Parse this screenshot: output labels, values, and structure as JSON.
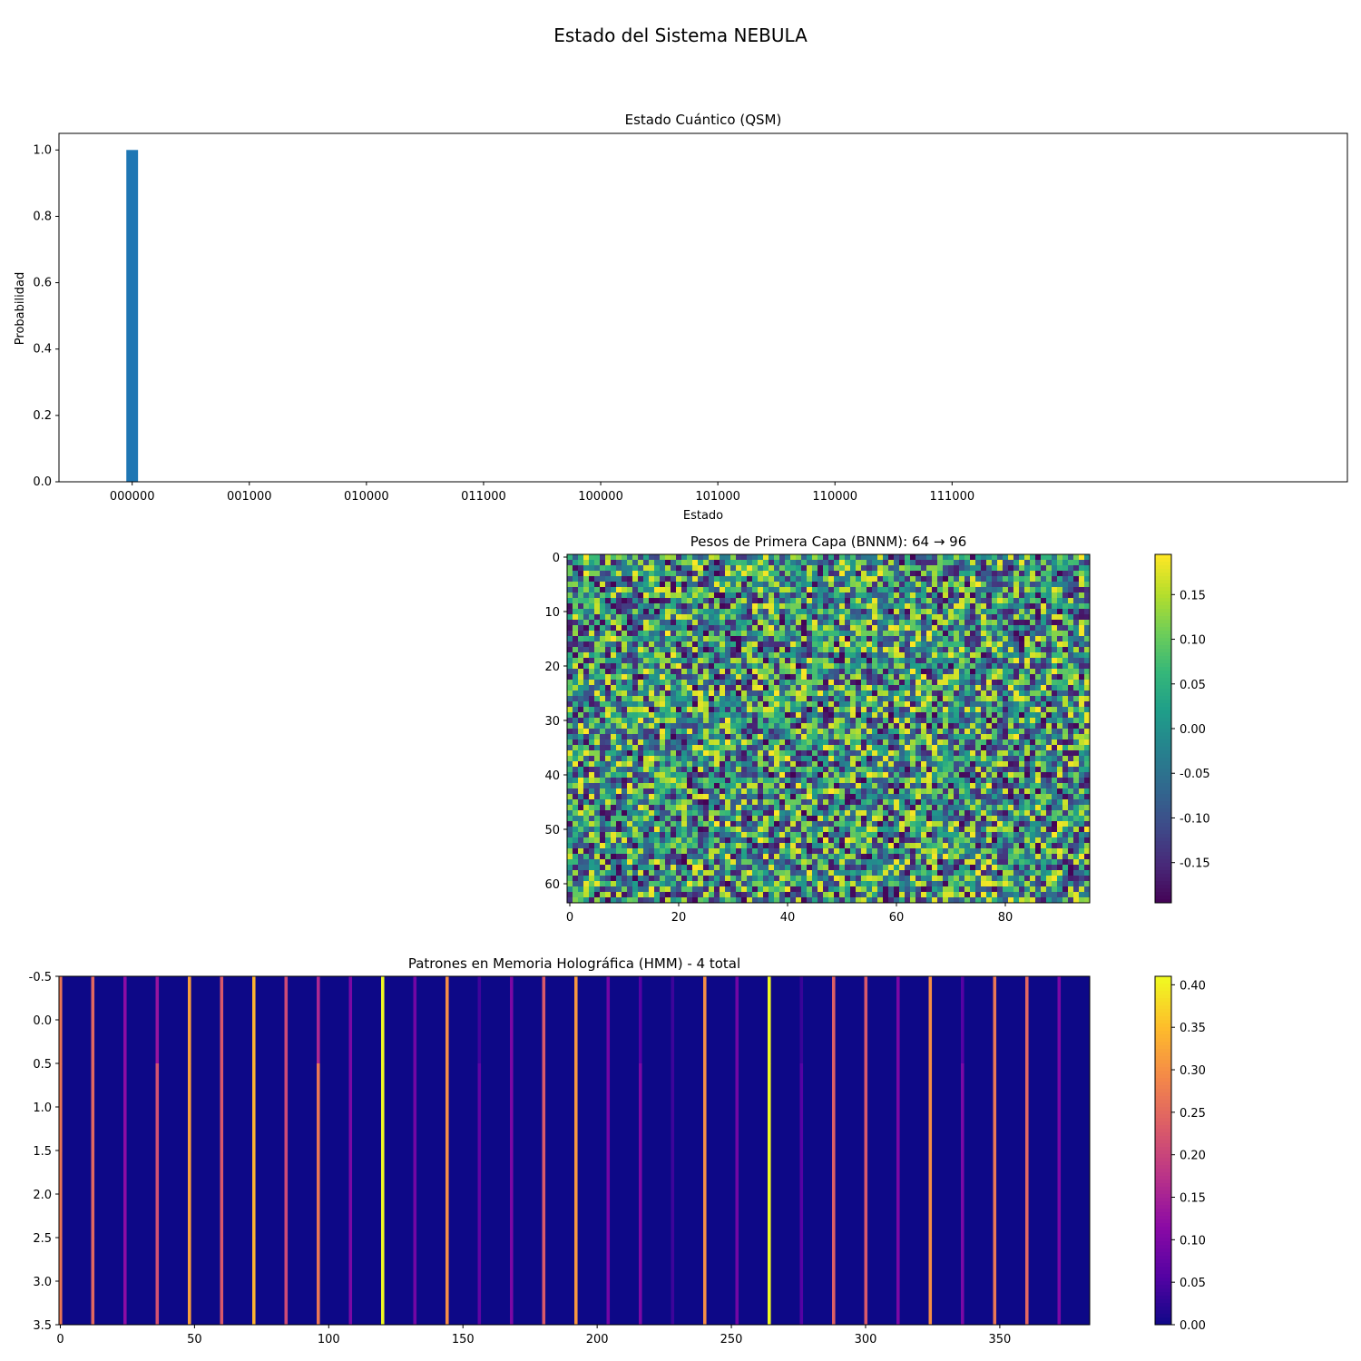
{
  "figure": {
    "title": "Estado del Sistema NEBULA"
  },
  "chart_data": [
    {
      "type": "bar",
      "title": "Estado Cuántico (QSM)",
      "xlabel": "Estado",
      "ylabel": "Probabilidad",
      "n_states": 64,
      "tick_labels": [
        "000000",
        "001000",
        "010000",
        "011000",
        "100000",
        "101000",
        "110000",
        "111000"
      ],
      "tick_positions": [
        0,
        8,
        16,
        24,
        32,
        40,
        48,
        56
      ],
      "values": [
        1.0,
        0,
        0,
        0,
        0,
        0,
        0,
        0,
        0,
        0,
        0,
        0,
        0,
        0,
        0,
        0,
        0,
        0,
        0,
        0,
        0,
        0,
        0,
        0,
        0,
        0,
        0,
        0,
        0,
        0,
        0,
        0,
        0,
        0,
        0,
        0,
        0,
        0,
        0,
        0,
        0,
        0,
        0,
        0,
        0,
        0,
        0,
        0,
        0,
        0,
        0,
        0,
        0,
        0,
        0,
        0,
        0,
        0,
        0,
        0,
        0,
        0,
        0,
        0
      ],
      "ylim": [
        0,
        1.05
      ],
      "yticks": [
        "0.0",
        "0.2",
        "0.4",
        "0.6",
        "0.8",
        "1.0"
      ],
      "ytick_values": [
        0,
        0.2,
        0.4,
        0.6,
        0.8,
        1.0
      ],
      "bar_color": "#1f77b4"
    },
    {
      "type": "heatmap",
      "title": "Pesos de Primera Capa (BNNM): 64 → 96",
      "rows": 64,
      "cols": 96,
      "colormap": "viridis",
      "vmin": -0.195,
      "vmax": 0.195,
      "note": "random weights, uniform",
      "xticks": [
        "0",
        "20",
        "40",
        "60",
        "80"
      ],
      "xtick_values": [
        0,
        20,
        40,
        60,
        80
      ],
      "yticks": [
        "0",
        "10",
        "20",
        "30",
        "40",
        "50",
        "60"
      ],
      "ytick_values": [
        0,
        10,
        20,
        30,
        40,
        50,
        60
      ],
      "colorbar_ticks": [
        "0.15",
        "0.10",
        "0.05",
        "0.00",
        "-0.05",
        "-0.10",
        "-0.15"
      ],
      "colorbar_values": [
        0.15,
        0.1,
        0.05,
        0.0,
        -0.05,
        -0.1,
        -0.15
      ]
    },
    {
      "type": "heatmap",
      "title": "Patrones en Memoria Holográfica (HMM) - 4 total",
      "rows": 4,
      "cols": 384,
      "colormap": "plasma",
      "vmin": 0.0,
      "vmax": 0.41,
      "stripe_period": 12,
      "stripe_values": [
        0.27,
        0.25,
        0.12,
        0.22,
        0.32,
        0.23,
        0.34,
        0.21,
        0.27,
        0.1,
        0.41,
        0.09,
        0.3,
        0.07,
        0.1,
        0.23,
        0.31,
        0.09,
        0.1,
        0.04,
        0.3,
        0.09,
        0.41,
        0.06,
        0.24,
        0.23,
        0.1,
        0.3,
        0.1,
        0.27,
        0.25,
        0.1
      ],
      "xticks": [
        "0",
        "50",
        "100",
        "150",
        "200",
        "250",
        "300",
        "350"
      ],
      "xtick_values": [
        0,
        50,
        100,
        150,
        200,
        250,
        300,
        350
      ],
      "yticks": [
        "-0.5",
        "0.0",
        "0.5",
        "1.0",
        "1.5",
        "2.0",
        "2.5",
        "3.0",
        "3.5"
      ],
      "ytick_values": [
        -0.5,
        0.0,
        0.5,
        1.0,
        1.5,
        2.0,
        2.5,
        3.0,
        3.5
      ],
      "colorbar_ticks": [
        "0.40",
        "0.35",
        "0.30",
        "0.25",
        "0.20",
        "0.15",
        "0.10",
        "0.05",
        "0.00"
      ],
      "colorbar_values": [
        0.4,
        0.35,
        0.3,
        0.25,
        0.2,
        0.15,
        0.1,
        0.05,
        0.0
      ]
    }
  ]
}
